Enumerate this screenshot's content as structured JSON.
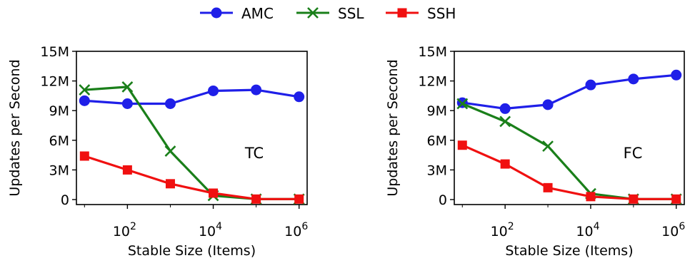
{
  "legend": {
    "placement": "top-center",
    "items": [
      {
        "label": "AMC",
        "color": "#1f1fe8",
        "marker": "circle"
      },
      {
        "label": "SSL",
        "color": "#1a7f1a",
        "marker": "x"
      },
      {
        "label": "SSH",
        "color": "#f01010",
        "marker": "square"
      }
    ]
  },
  "chart_data": [
    {
      "type": "line",
      "annotation": "TC",
      "xlabel": "Stable Size (Items)",
      "ylabel": "Updates per Second",
      "xscale": "log10",
      "xlim": [
        10,
        1000000
      ],
      "ylim": [
        0,
        15
      ],
      "xticks": [
        {
          "value": 100,
          "base": "10",
          "exp": "2"
        },
        {
          "value": 10000,
          "base": "10",
          "exp": "4"
        },
        {
          "value": 1000000,
          "base": "10",
          "exp": "6"
        }
      ],
      "yticks": [
        {
          "value": 0,
          "label": "0"
        },
        {
          "value": 3,
          "label": "3M"
        },
        {
          "value": 6,
          "label": "6M"
        },
        {
          "value": 9,
          "label": "9M"
        },
        {
          "value": 12,
          "label": "12M"
        },
        {
          "value": 15,
          "label": "15M"
        }
      ],
      "x": [
        10,
        100,
        1000,
        10000,
        100000,
        1000000
      ],
      "series": [
        {
          "name": "AMC",
          "values": [
            10.0,
            9.7,
            9.7,
            11.0,
            11.1,
            10.4
          ]
        },
        {
          "name": "SSL",
          "values": [
            11.1,
            11.4,
            4.9,
            0.4,
            0.05,
            0.05
          ]
        },
        {
          "name": "SSH",
          "values": [
            4.4,
            3.0,
            1.6,
            0.65,
            0.05,
            0.05
          ]
        }
      ]
    },
    {
      "type": "line",
      "annotation": "FC",
      "xlabel": "Stable Size (Items)",
      "ylabel": "Updates per Second",
      "xscale": "log10",
      "xlim": [
        10,
        1000000
      ],
      "ylim": [
        0,
        15
      ],
      "xticks": [
        {
          "value": 100,
          "base": "10",
          "exp": "2"
        },
        {
          "value": 10000,
          "base": "10",
          "exp": "4"
        },
        {
          "value": 1000000,
          "base": "10",
          "exp": "6"
        }
      ],
      "yticks": [
        {
          "value": 0,
          "label": "0"
        },
        {
          "value": 3,
          "label": "3M"
        },
        {
          "value": 6,
          "label": "6M"
        },
        {
          "value": 9,
          "label": "9M"
        },
        {
          "value": 12,
          "label": "12M"
        },
        {
          "value": 15,
          "label": "15M"
        }
      ],
      "x": [
        10,
        100,
        1000,
        10000,
        100000,
        1000000
      ],
      "series": [
        {
          "name": "AMC",
          "values": [
            9.8,
            9.2,
            9.6,
            11.6,
            12.2,
            12.6
          ]
        },
        {
          "name": "SSL",
          "values": [
            9.7,
            7.9,
            5.4,
            0.6,
            0.05,
            0.05
          ]
        },
        {
          "name": "SSH",
          "values": [
            5.5,
            3.6,
            1.2,
            0.3,
            0.05,
            0.05
          ]
        }
      ]
    }
  ]
}
